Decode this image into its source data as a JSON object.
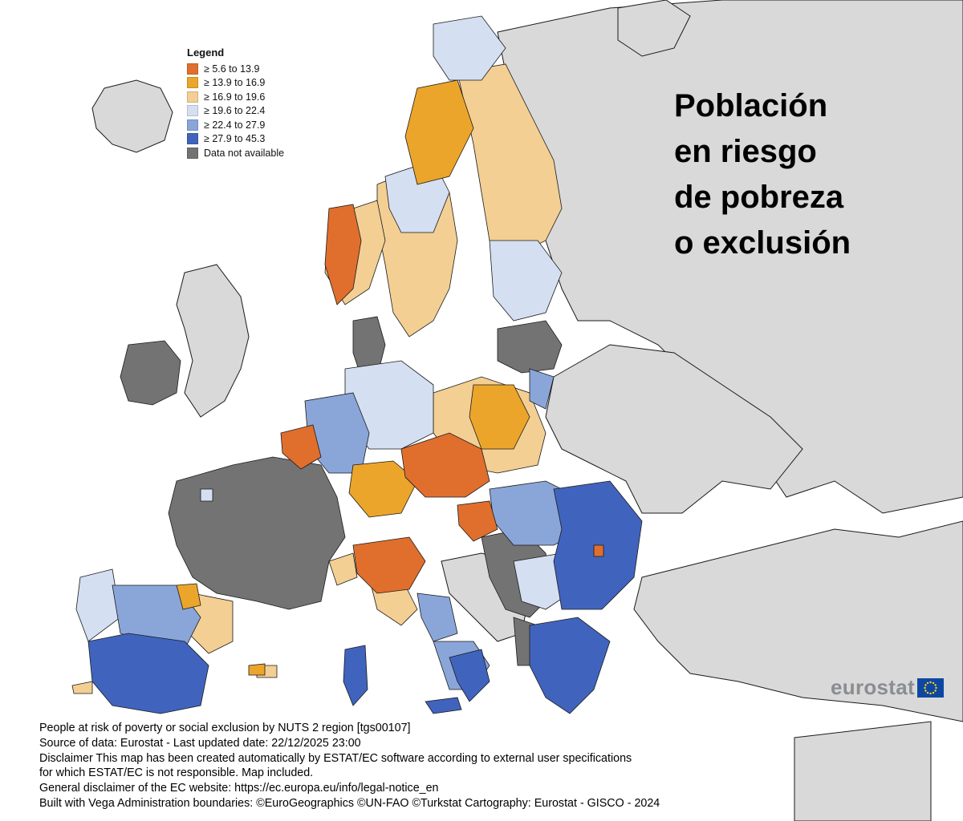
{
  "map": {
    "title_lines": [
      "Población",
      "en riesgo",
      "de pobreza",
      "o exclusión"
    ],
    "legend": {
      "title": "Legend",
      "items": [
        {
          "label": "≥ 5.6 to 13.9",
          "color": "#e06f2d"
        },
        {
          "label": "≥ 13.9 to 16.9",
          "color": "#eca52b"
        },
        {
          "label": "≥ 16.9 to 19.6",
          "color": "#f3cf94"
        },
        {
          "label": "≥ 19.6 to 22.4",
          "color": "#d5dff2"
        },
        {
          "label": "≥ 22.4 to 27.9",
          "color": "#8aa6d9"
        },
        {
          "label": "≥ 27.9 to 45.3",
          "color": "#4064bd"
        },
        {
          "label": "Data not available",
          "color": "#737373"
        }
      ]
    },
    "brand": "eurostat",
    "footer": [
      "People at risk of poverty or social exclusion by NUTS 2 region [tgs00107]",
      "Source of data: Eurostat - Last updated date: 22/12/2025 23:00",
      "Disclaimer This map has been created automatically by ESTAT/EC software according to external user specifications",
      "for which ESTAT/EC is not responsible. Map included.",
      "General disclaimer of the EC website: https://ec.europa.eu/info/legal-notice_en",
      "Built with Vega Administration boundaries: ©EuroGeographics ©UN-FAO ©Turkstat Cartography: Eurostat - GISCO - 2024"
    ],
    "colors": {
      "land_non_eu": "#d9d9d9",
      "sea": "#ffffff",
      "border": "#1a1a1a"
    }
  }
}
